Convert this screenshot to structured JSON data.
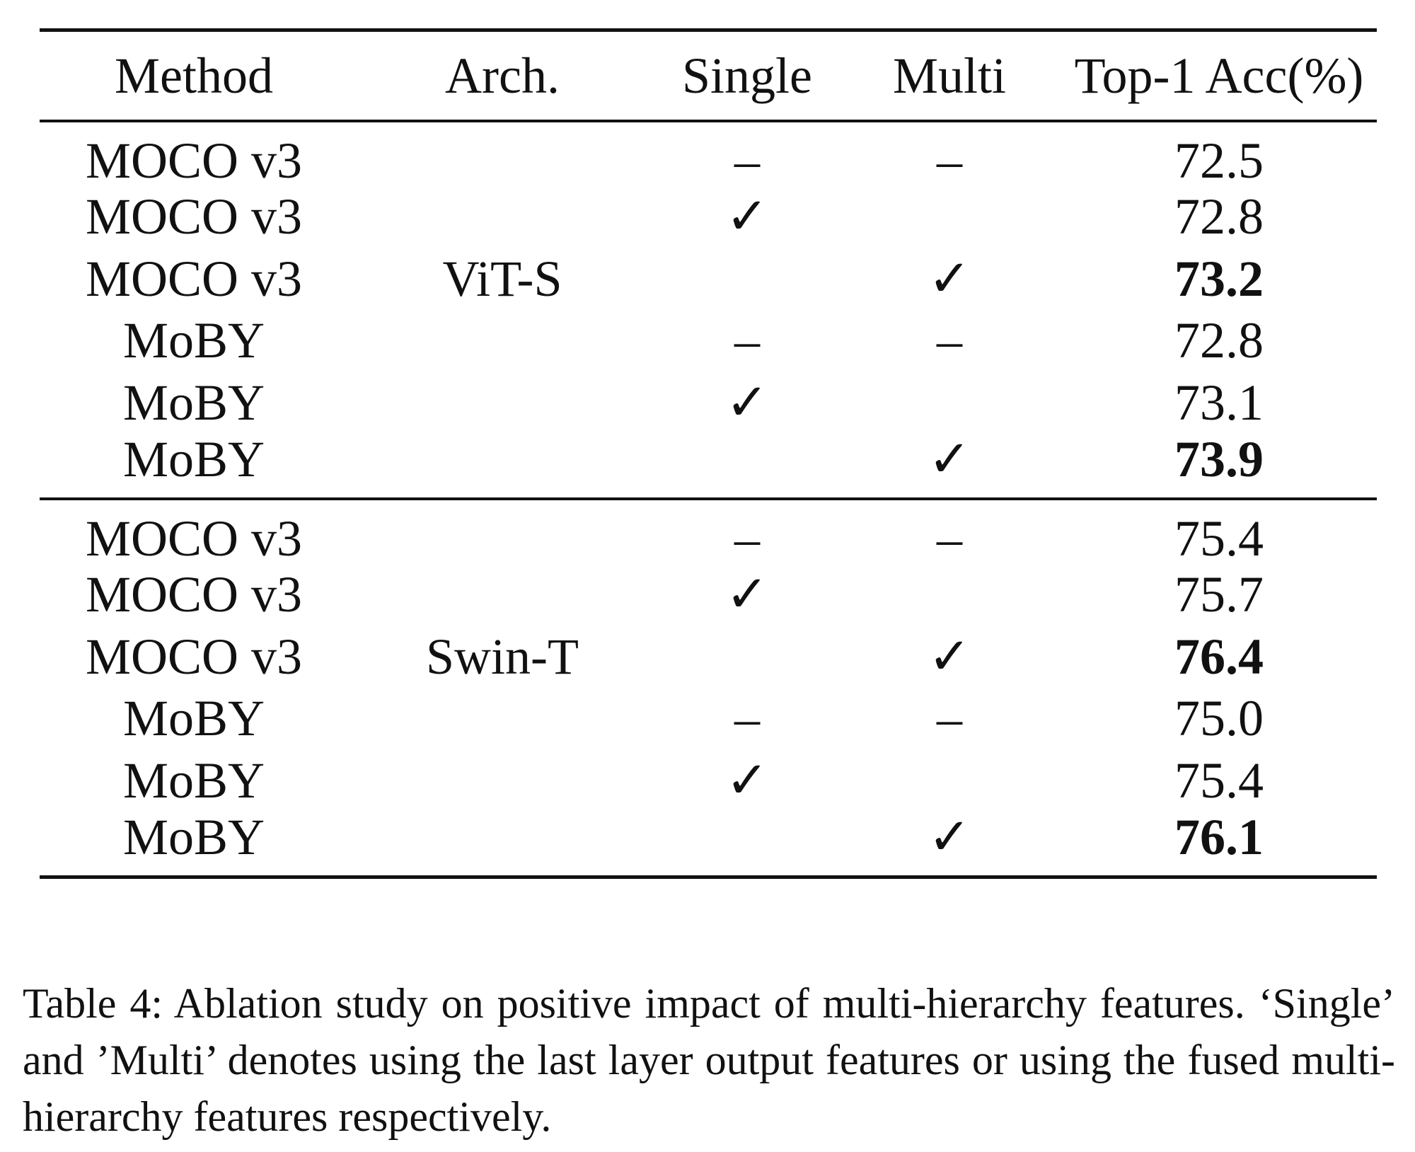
{
  "table": {
    "headers": [
      "Method",
      "Arch.",
      "Single",
      "Multi",
      "Top-1 Acc(%)"
    ],
    "groups": [
      {
        "arch": "ViT-S",
        "rows": [
          {
            "method": "MOCO v3",
            "single": "–",
            "multi": "–",
            "acc": "72.5",
            "bold": false
          },
          {
            "method": "MOCO v3",
            "single": "✓",
            "multi": "",
            "acc": "72.8",
            "bold": false
          },
          {
            "method": "MOCO v3",
            "single": "",
            "multi": "✓",
            "acc": "73.2",
            "bold": true
          },
          {
            "method": "MoBY",
            "single": "–",
            "multi": "–",
            "acc": "72.8",
            "bold": false
          },
          {
            "method": "MoBY",
            "single": "✓",
            "multi": "",
            "acc": "73.1",
            "bold": false
          },
          {
            "method": "MoBY",
            "single": "",
            "multi": "✓",
            "acc": "73.9",
            "bold": true
          }
        ]
      },
      {
        "arch": "Swin-T",
        "rows": [
          {
            "method": "MOCO v3",
            "single": "–",
            "multi": "–",
            "acc": "75.4",
            "bold": false
          },
          {
            "method": "MOCO v3",
            "single": "✓",
            "multi": "",
            "acc": "75.7",
            "bold": false
          },
          {
            "method": "MOCO v3",
            "single": "",
            "multi": "✓",
            "acc": "76.4",
            "bold": true
          },
          {
            "method": "MoBY",
            "single": "–",
            "multi": "–",
            "acc": "75.0",
            "bold": false
          },
          {
            "method": "MoBY",
            "single": "✓",
            "multi": "",
            "acc": "75.4",
            "bold": false
          },
          {
            "method": "MoBY",
            "single": "",
            "multi": "✓",
            "acc": "76.1",
            "bold": true
          }
        ]
      }
    ]
  },
  "caption": "Table 4: Ablation study on positive impact of multi-hierarchy features. ‘Single’ and ’Multi’ denotes using the last layer output features or using the fused multi-hierarchy features respectively."
}
